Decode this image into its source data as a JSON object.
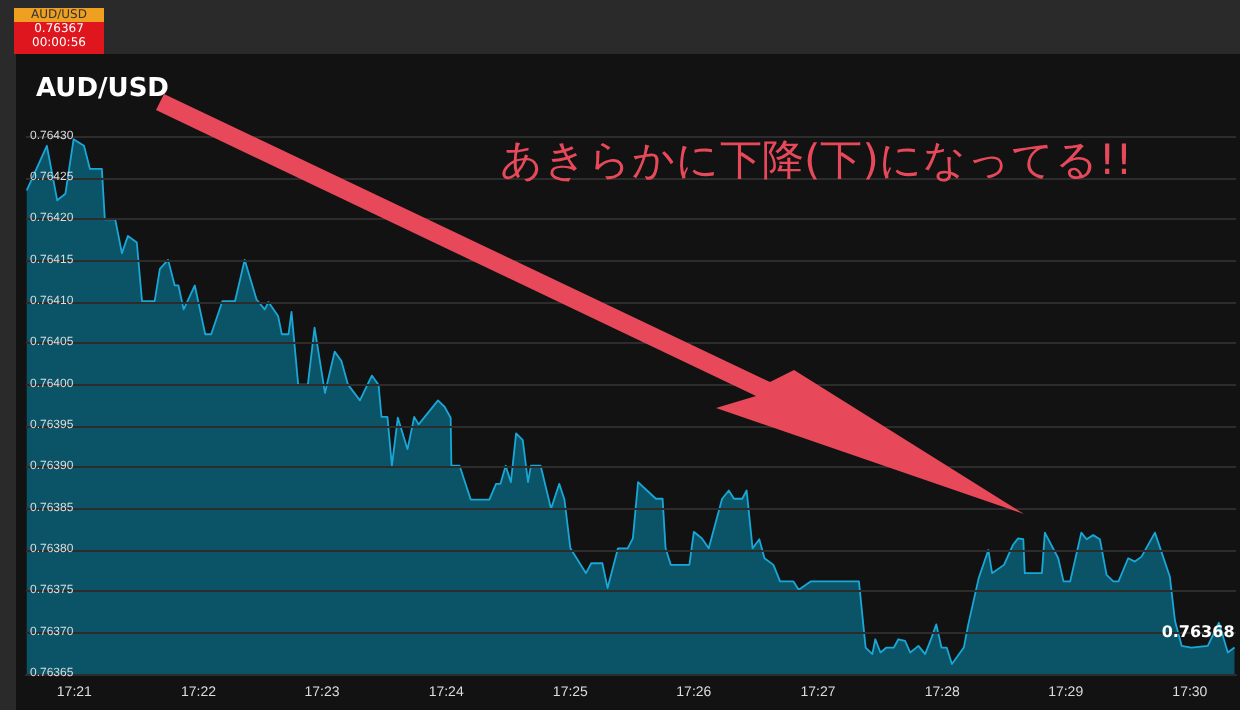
{
  "chart_data": {
    "type": "area",
    "title": "AUD/USD",
    "color": "#1aa6d6",
    "x": [
      17.3436,
      17.3463,
      17.3477,
      17.3488,
      17.3499,
      17.3513,
      17.3521,
      17.3537,
      17.3541,
      17.3555,
      17.3564,
      17.3572,
      17.3584,
      17.3591,
      17.3608,
      17.3615,
      17.3626,
      17.3635,
      17.364,
      17.3647,
      17.3662,
      17.3676,
      17.3684,
      17.3699,
      17.3716,
      17.3729,
      17.3745,
      17.3756,
      17.3761,
      17.3774,
      17.3779,
      17.3788,
      17.3792,
      17.3801,
      17.3814,
      17.3823,
      17.3837,
      17.385,
      17.3859,
      17.3868,
      17.3884,
      17.39,
      17.3909,
      17.3913,
      17.3921,
      17.3927,
      17.3935,
      17.3948,
      17.3957,
      17.3963,
      17.3989,
      17.3998,
      17.4006,
      17.4007,
      17.4018,
      17.4033,
      17.4058,
      17.4067,
      17.4073,
      17.408,
      17.4087,
      17.4094,
      17.4103,
      17.411,
      17.4114,
      17.4127,
      17.4141,
      17.4152,
      17.4159,
      17.4167,
      17.4188,
      17.4195,
      17.421,
      17.4217,
      17.4231,
      17.4244,
      17.4251,
      17.4258,
      17.427,
      17.4282,
      17.4291,
      17.4295,
      17.4302,
      17.4327,
      17.4333,
      17.4344,
      17.4353,
      17.4371,
      17.438,
      17.4387,
      17.4398,
      17.4404,
      17.4412,
      17.4421,
      17.4428,
      17.444,
      17.4449,
      17.4467,
      17.4474,
      17.449,
      17.4555,
      17.4564,
      17.4573,
      17.4577,
      17.4584,
      17.4592,
      17.4602,
      17.4608,
      17.4617,
      17.4624,
      17.4635,
      17.4644,
      17.4651,
      17.4659,
      17.4666,
      17.4673,
      17.468,
      17.4696,
      17.4702,
      17.4716,
      17.4729,
      17.4734,
      17.475,
      17.4762,
      17.4769,
      17.4776,
      17.4778,
      17.4801,
      17.4805,
      17.4823,
      17.483,
      17.4839,
      17.4854,
      17.4861,
      17.487,
      17.4879,
      17.4888,
      17.4897,
      17.4904,
      17.4917,
      17.4926,
      17.4935,
      17.4953,
      17.4973,
      17.498,
      17.4989,
      17.5002,
      17.5024,
      17.5039,
      17.5051,
      17.506
    ],
    "values": [
      0.764235,
      0.764289,
      0.764223,
      0.764231,
      0.764297,
      0.764289,
      0.764261,
      0.764261,
      0.7642,
      0.7642,
      0.764159,
      0.76418,
      0.764172,
      0.764101,
      0.764101,
      0.76414,
      0.764151,
      0.76412,
      0.76412,
      0.764091,
      0.76412,
      0.764061,
      0.764061,
      0.764101,
      0.764101,
      0.764151,
      0.764103,
      0.764091,
      0.7641,
      0.764083,
      0.764061,
      0.764061,
      0.764088,
      0.764,
      0.764,
      0.764069,
      0.76399,
      0.76404,
      0.764029,
      0.764,
      0.763981,
      0.764011,
      0.764,
      0.763961,
      0.763961,
      0.763902,
      0.76396,
      0.763922,
      0.763961,
      0.763952,
      0.763981,
      0.763973,
      0.76396,
      0.763902,
      0.763902,
      0.763861,
      0.763861,
      0.76388,
      0.76388,
      0.763902,
      0.763882,
      0.763941,
      0.763933,
      0.763882,
      0.763902,
      0.763902,
      0.76385,
      0.76388,
      0.763861,
      0.763802,
      0.763772,
      0.763784,
      0.763784,
      0.763754,
      0.763802,
      0.763802,
      0.763814,
      0.763882,
      0.763872,
      0.763862,
      0.763862,
      0.763802,
      0.763782,
      0.763782,
      0.763822,
      0.763814,
      0.763802,
      0.763862,
      0.763872,
      0.763862,
      0.763862,
      0.763872,
      0.763802,
      0.763813,
      0.76379,
      0.763782,
      0.763762,
      0.763762,
      0.763752,
      0.763762,
      0.763762,
      0.763682,
      0.763674,
      0.763692,
      0.763676,
      0.763682,
      0.763682,
      0.763692,
      0.76369,
      0.763676,
      0.763684,
      0.763674,
      0.76369,
      0.76371,
      0.763682,
      0.763682,
      0.763662,
      0.763682,
      0.76371,
      0.763766,
      0.7638,
      0.763772,
      0.763782,
      0.763806,
      0.763814,
      0.763813,
      0.763772,
      0.763772,
      0.763821,
      0.76379,
      0.763762,
      0.763762,
      0.763821,
      0.763813,
      0.763818,
      0.763813,
      0.76377,
      0.763762,
      0.763762,
      0.76379,
      0.763786,
      0.763792,
      0.763821,
      0.763768,
      0.763714,
      0.763684,
      0.763682,
      0.763684,
      0.763712,
      0.763676,
      0.763682
    ],
    "xlim": [
      17.3435,
      17.5062
    ],
    "xticks": [
      {
        "value": 17.35,
        "label": "17:21"
      },
      {
        "value": 17.3667,
        "label": "17:22"
      },
      {
        "value": 17.3833,
        "label": "17:23"
      },
      {
        "value": 17.4,
        "label": "17:24"
      },
      {
        "value": 17.4167,
        "label": "17:25"
      },
      {
        "value": 17.4333,
        "label": "17:26"
      },
      {
        "value": 17.45,
        "label": "17:27"
      },
      {
        "value": 17.4667,
        "label": "17:28"
      },
      {
        "value": 17.4833,
        "label": "17:29"
      },
      {
        "value": 17.5,
        "label": "17:30"
      }
    ],
    "ylim": [
      0.76365,
      0.7644
    ],
    "yticks": [
      {
        "value": 0.76365,
        "label": "0.76365"
      },
      {
        "value": 0.7637,
        "label": "0.76370"
      },
      {
        "value": 0.76375,
        "label": "0.76375"
      },
      {
        "value": 0.7638,
        "label": "0.76380"
      },
      {
        "value": 0.76385,
        "label": "0.76385"
      },
      {
        "value": 0.7639,
        "label": "0.76390"
      },
      {
        "value": 0.76395,
        "label": "0.76395"
      },
      {
        "value": 0.764,
        "label": "0.76400"
      },
      {
        "value": 0.76405,
        "label": "0.76405"
      },
      {
        "value": 0.7641,
        "label": "0.76410"
      },
      {
        "value": 0.76415,
        "label": "0.76415"
      },
      {
        "value": 0.7642,
        "label": "0.76420"
      },
      {
        "value": 0.76425,
        "label": "0.76425"
      },
      {
        "value": 0.7643,
        "label": "0.76430"
      }
    ],
    "grid": "y",
    "marker": "none",
    "line_style": "solid",
    "annotations": [
      "AUD/USD",
      "0.76367",
      "00:00:56",
      "あきらかに下降(下)になってる!!",
      {
        "text": "0.76368",
        "x": 17.506,
        "y": 0.763682
      }
    ]
  }
}
